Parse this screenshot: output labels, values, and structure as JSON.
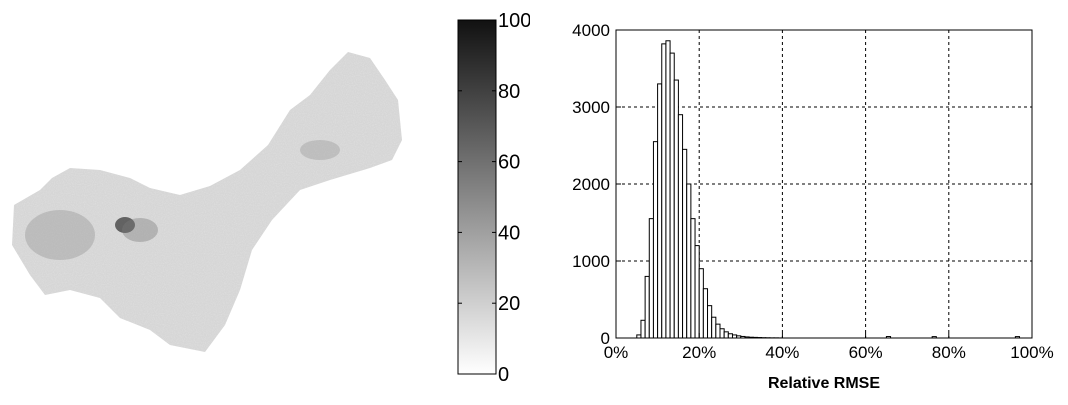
{
  "map": {
    "description_icon": "grayscale-raster-map"
  },
  "colorbar": {
    "ticks": [
      "100",
      "80",
      "60",
      "40",
      "20",
      "0"
    ],
    "tick_values": [
      100,
      80,
      60,
      40,
      20,
      0
    ],
    "range": [
      0,
      100
    ],
    "colormap": [
      "#ffffff",
      "#111111"
    ]
  },
  "chart_data": {
    "type": "bar",
    "title": "",
    "xlabel": "Relative RMSE",
    "ylabel": "",
    "xlim": [
      0,
      100
    ],
    "ylim": [
      0,
      4000
    ],
    "x_ticks": [
      0,
      20,
      40,
      60,
      80,
      100
    ],
    "x_tick_labels": [
      "0%",
      "20%",
      "40%",
      "60%",
      "80%",
      "100%"
    ],
    "y_ticks": [
      0,
      1000,
      2000,
      3000,
      4000
    ],
    "y_tick_labels": [
      "0",
      "1000",
      "2000",
      "3000",
      "4000"
    ],
    "grid": true,
    "bin_width": 1,
    "bin_start": 5,
    "values": [
      40,
      230,
      800,
      1550,
      2550,
      3300,
      3820,
      3860,
      3700,
      3350,
      2900,
      2450,
      2000,
      1550,
      1200,
      900,
      640,
      420,
      270,
      180,
      120,
      80,
      55,
      40,
      28,
      20,
      14,
      10,
      8,
      6,
      4,
      3,
      2,
      2,
      1
    ],
    "outliers": [
      {
        "x": 65,
        "value": 6
      },
      {
        "x": 76,
        "value": 5
      },
      {
        "x": 96,
        "value": 5
      }
    ]
  }
}
